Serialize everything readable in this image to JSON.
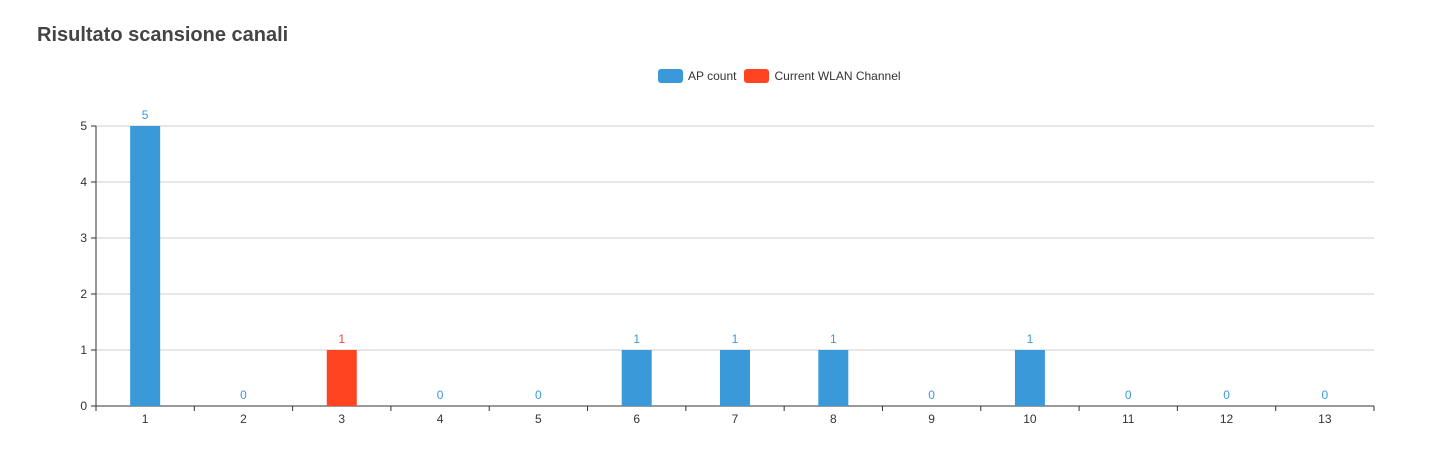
{
  "title": "Risultato scansione canali",
  "colors": {
    "ap": "#3a9ad9",
    "current": "#ff4422",
    "grid": "#cccccc",
    "axis": "#333333"
  },
  "legend": {
    "ap_label": "AP count",
    "current_label": "Current WLAN Channel"
  },
  "chart_data": {
    "type": "bar",
    "categories": [
      "1",
      "2",
      "3",
      "4",
      "5",
      "6",
      "7",
      "8",
      "9",
      "10",
      "11",
      "12",
      "13"
    ],
    "values": [
      5,
      0,
      1,
      0,
      0,
      1,
      1,
      1,
      0,
      1,
      0,
      0,
      0
    ],
    "highlight_category": "3",
    "series": [
      {
        "name": "AP count"
      },
      {
        "name": "Current WLAN Channel"
      }
    ],
    "yticks": [
      "0",
      "1",
      "2",
      "3",
      "4",
      "5"
    ],
    "ylim": [
      0,
      5
    ],
    "grid": true,
    "legend_position": "top-center",
    "xlabel": "",
    "ylabel": ""
  }
}
